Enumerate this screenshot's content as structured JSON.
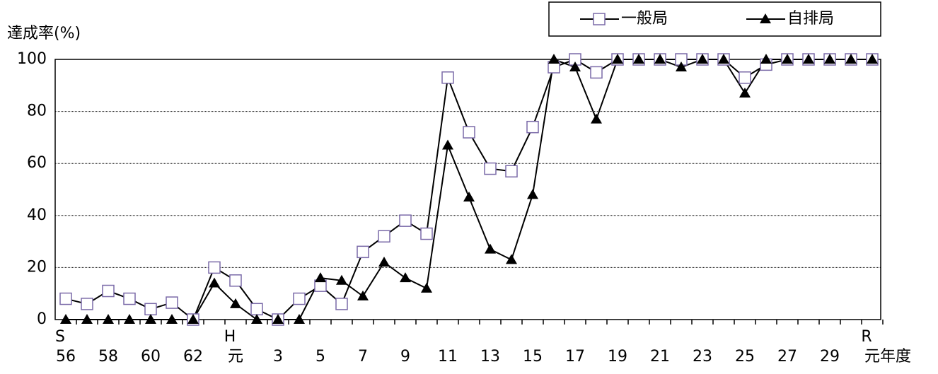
{
  "chart_data": {
    "type": "line",
    "ylabel": "達成率(%)",
    "xlabel": "年度",
    "categories": [
      "56",
      null,
      "58",
      null,
      "60",
      null,
      "62",
      null,
      "元",
      null,
      "3",
      null,
      "5",
      null,
      "7",
      null,
      "9",
      null,
      "11",
      null,
      "13",
      null,
      "15",
      null,
      "17",
      null,
      "19",
      null,
      "21",
      null,
      "23",
      null,
      "25",
      null,
      "27",
      null,
      "29",
      null,
      "元"
    ],
    "era": [
      "S",
      null,
      null,
      null,
      null,
      null,
      null,
      null,
      "H",
      null,
      null,
      null,
      null,
      null,
      null,
      null,
      null,
      null,
      null,
      null,
      null,
      null,
      null,
      null,
      null,
      null,
      null,
      null,
      null,
      null,
      null,
      null,
      null,
      null,
      null,
      null,
      null,
      null,
      "R"
    ],
    "series": [
      {
        "name": "一般局",
        "color": "#7a6aa8",
        "marker": "square",
        "values": [
          8,
          6,
          11,
          8,
          4,
          6.5,
          0,
          20,
          15,
          4,
          0,
          8,
          13,
          6,
          26,
          32,
          38,
          33,
          93,
          72,
          58,
          57,
          74,
          97,
          100,
          95,
          100,
          100,
          100,
          100,
          100,
          100,
          93,
          98,
          100,
          100,
          100,
          100,
          100
        ]
      },
      {
        "name": "自排局",
        "color": "#000000",
        "marker": "triangle",
        "values": [
          0,
          0,
          0,
          0,
          0,
          0,
          0,
          14,
          6,
          0,
          0,
          0,
          16,
          15,
          9,
          22,
          16,
          12,
          67,
          47,
          27,
          23,
          48,
          100,
          97,
          77,
          100,
          100,
          100,
          97,
          100,
          100,
          87,
          100,
          100,
          100,
          100,
          100,
          100
        ]
      }
    ],
    "ylim": [
      0,
      100
    ],
    "yticks": [
      0,
      20,
      40,
      60,
      80,
      100
    ],
    "grid": true
  }
}
